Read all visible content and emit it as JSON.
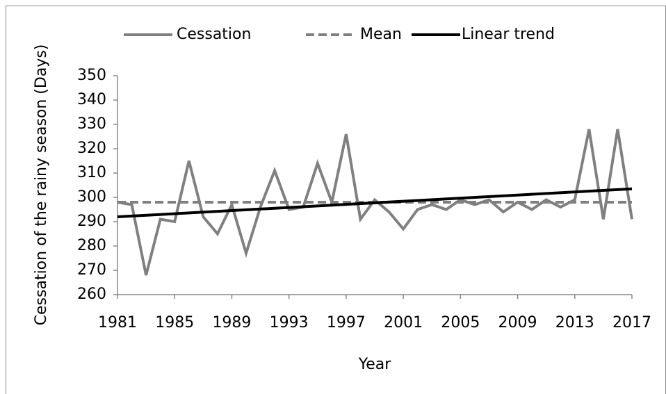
{
  "chart_data": {
    "type": "line",
    "y_label": "Cessation of the rainy season (Days)",
    "x_label": "Year",
    "x": [
      1981,
      1982,
      1983,
      1984,
      1985,
      1986,
      1987,
      1988,
      1989,
      1990,
      1991,
      1992,
      1993,
      1994,
      1995,
      1996,
      1997,
      1998,
      1999,
      2000,
      2001,
      2002,
      2003,
      2004,
      2005,
      2006,
      2007,
      2008,
      2009,
      2010,
      2011,
      2012,
      2013,
      2014,
      2015,
      2016,
      2017
    ],
    "series": [
      {
        "name": "Cessation",
        "color": "#808080",
        "dashed": false,
        "values": [
          298,
          297,
          268,
          291,
          290,
          315,
          292,
          285,
          297,
          277,
          296,
          311,
          295,
          296,
          314,
          298,
          326,
          291,
          299,
          294,
          287,
          295,
          297,
          295,
          299,
          297,
          299,
          294,
          298,
          295,
          299,
          296,
          299,
          328,
          291,
          328,
          291
        ]
      },
      {
        "name": "Mean",
        "color": "#808080",
        "dashed": true,
        "x": [
          1981,
          2017
        ],
        "values": [
          298,
          298
        ]
      },
      {
        "name": "Linear trend",
        "color": "#000000",
        "dashed": false,
        "x": [
          1981,
          2017
        ],
        "values": [
          292,
          303.5
        ]
      }
    ],
    "xlim": [
      1981,
      2017
    ],
    "xticks": [
      1981,
      1985,
      1989,
      1993,
      1997,
      2001,
      2005,
      2009,
      2013,
      2017
    ],
    "ylim": [
      260,
      350
    ],
    "yticks": [
      260,
      270,
      280,
      290,
      300,
      310,
      320,
      330,
      340,
      350
    ],
    "legend": "top",
    "grid": false
  }
}
